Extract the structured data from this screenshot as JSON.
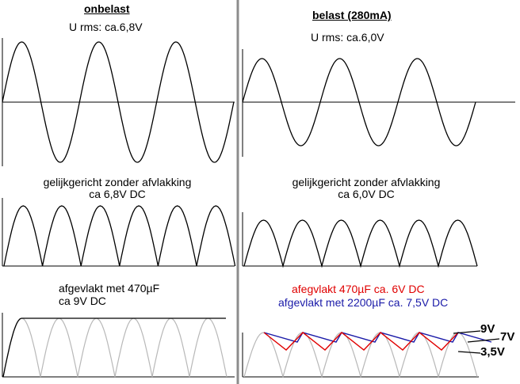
{
  "left": {
    "heading": "onbelast",
    "rms": "U rms: ca.6,8V",
    "rectified_title": "gelijkgericht zonder afvlakking",
    "rectified_value": "ca 6,8V DC",
    "smoothed_title": "afgevlakt met 470µF",
    "smoothed_value": "ca 9V DC"
  },
  "right": {
    "heading": "belast (280mA)",
    "rms": "U rms: ca.6,0V",
    "rectified_title": "gelijkgericht zonder afvlakking",
    "rectified_value": "ca 6,0V DC",
    "smoothed_red": "afegvlakt 470µF ca. 6V DC",
    "smoothed_blue": "afgevlakt met 2200µF ca. 7,5V DC",
    "label_9v": "9V",
    "label_7v": "7V",
    "label_35v": "3,5V"
  },
  "colors": {
    "trace": "#000000",
    "ghost": "#b8b8b8",
    "divider": "#8c8c8c",
    "smooth_470": "#e00000",
    "smooth_2200": "#1a1aa8"
  }
}
